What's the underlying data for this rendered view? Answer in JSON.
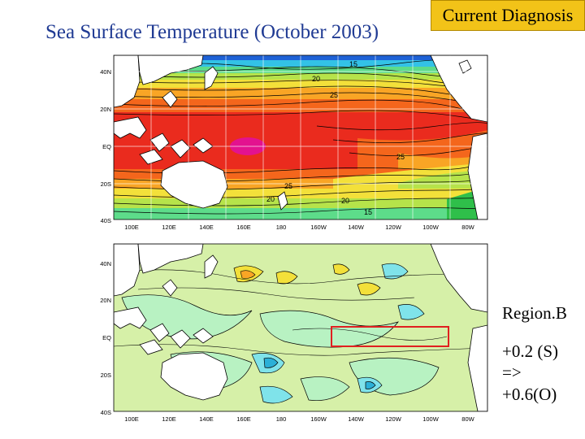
{
  "header": {
    "title": "Sea Surface Temperature (October 2003)",
    "badge": "Current Diagnosis"
  },
  "map_axes": {
    "lat_labels": [
      "40N",
      "20N",
      "EQ",
      "20S",
      "40S"
    ],
    "lon_labels": [
      "100E",
      "120E",
      "140E",
      "160E",
      "180",
      "160W",
      "140W",
      "120W",
      "100W",
      "80W"
    ]
  },
  "sst_map": {
    "contour_labels": [
      "15",
      "20",
      "25",
      "25",
      "25",
      "20",
      "20",
      "15"
    ]
  },
  "sidebar": {
    "region_label": "Region.B",
    "line1": "+0.2 (S)",
    "line2": "=>",
    "line3": "+0.6(O)"
  },
  "colors": {
    "title": "#1f3a93",
    "badge_fill": "#f2c318",
    "region_box": "#e02020",
    "warm_pool": "#e3128f"
  }
}
